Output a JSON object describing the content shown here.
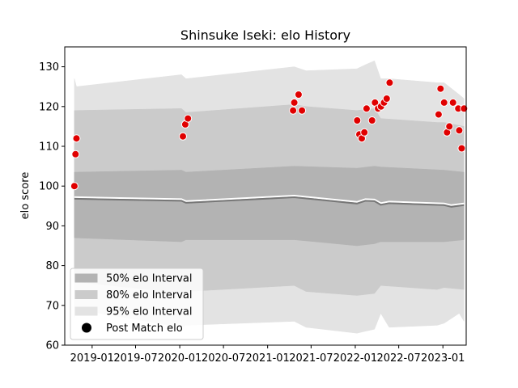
{
  "chart_data": {
    "type": "area",
    "title": "Shinsuke Iseki: elo History",
    "xlabel": "",
    "ylabel": "elo score",
    "ylim": [
      60,
      135
    ],
    "xlim": [
      "2018-09-09",
      "2023-04-08"
    ],
    "yticks": [
      "60",
      "70",
      "80",
      "90",
      "100",
      "110",
      "120",
      "130"
    ],
    "xticks": [
      {
        "date": "2019-01-01",
        "label": "2019-01"
      },
      {
        "date": "2019-07-01",
        "label": "2019-07"
      },
      {
        "date": "2020-01-01",
        "label": "2020-01"
      },
      {
        "date": "2020-07-01",
        "label": "2020-07"
      },
      {
        "date": "2021-01-01",
        "label": "2021-01"
      },
      {
        "date": "2021-07-01",
        "label": "2021-07"
      },
      {
        "date": "2022-01-01",
        "label": "2022-01"
      },
      {
        "date": "2022-07-01",
        "label": "2022-07"
      },
      {
        "date": "2023-01-01",
        "label": "2023-01"
      }
    ],
    "grid": false,
    "legend_position": "lower-left",
    "bands": [
      {
        "name": "95% elo Interval",
        "color": "#e3e3e3",
        "upper": [
          [
            "2018-10-19",
            127
          ],
          [
            "2018-10-28",
            125
          ],
          [
            "2020-01-08",
            128
          ],
          [
            "2020-01-27",
            127
          ],
          [
            "2021-04-22",
            130
          ],
          [
            "2021-06-10",
            129
          ],
          [
            "2022-01-08",
            129.5
          ],
          [
            "2022-02-12",
            130.5
          ],
          [
            "2022-03-22",
            131.5
          ],
          [
            "2022-04-17",
            127
          ],
          [
            "2022-05-22",
            127
          ],
          [
            "2022-12-08",
            126
          ],
          [
            "2023-01-06",
            126
          ],
          [
            "2023-03-10",
            123
          ],
          [
            "2023-03-30",
            122
          ]
        ],
        "lower": [
          [
            "2018-10-19",
            67
          ],
          [
            "2018-10-28",
            69
          ],
          [
            "2020-01-08",
            64.5
          ],
          [
            "2020-01-27",
            65
          ],
          [
            "2021-04-22",
            66
          ],
          [
            "2021-06-10",
            64.5
          ],
          [
            "2022-01-08",
            63
          ],
          [
            "2022-02-12",
            63.5
          ],
          [
            "2022-03-22",
            64
          ],
          [
            "2022-04-17",
            68
          ],
          [
            "2022-05-22",
            64.5
          ],
          [
            "2022-12-08",
            65
          ],
          [
            "2023-01-06",
            65.5
          ],
          [
            "2023-03-10",
            68
          ],
          [
            "2023-03-30",
            66
          ]
        ]
      },
      {
        "name": "80% elo Interval",
        "color": "#cbcbcb",
        "upper": [
          [
            "2018-10-19",
            119
          ],
          [
            "2020-01-08",
            119.5
          ],
          [
            "2020-01-27",
            118.5
          ],
          [
            "2021-04-22",
            120.5
          ],
          [
            "2021-06-10",
            120
          ],
          [
            "2022-01-08",
            119
          ],
          [
            "2022-03-22",
            119.5
          ],
          [
            "2022-04-17",
            117
          ],
          [
            "2022-12-08",
            116
          ],
          [
            "2023-01-06",
            116
          ],
          [
            "2023-03-30",
            115
          ]
        ],
        "lower": [
          [
            "2018-10-19",
            76
          ],
          [
            "2020-01-08",
            73
          ],
          [
            "2020-01-27",
            73.5
          ],
          [
            "2021-04-22",
            75
          ],
          [
            "2021-06-10",
            73.5
          ],
          [
            "2022-01-08",
            72.5
          ],
          [
            "2022-03-22",
            73
          ],
          [
            "2022-04-17",
            75
          ],
          [
            "2022-12-08",
            74
          ],
          [
            "2023-01-06",
            74.5
          ],
          [
            "2023-03-30",
            74
          ]
        ]
      },
      {
        "name": "50% elo Interval",
        "color": "#b3b3b3",
        "upper": [
          [
            "2018-10-19",
            103.5
          ],
          [
            "2020-01-08",
            104
          ],
          [
            "2020-01-27",
            103.5
          ],
          [
            "2021-04-22",
            105
          ],
          [
            "2022-01-08",
            104.5
          ],
          [
            "2022-03-22",
            105
          ],
          [
            "2022-04-17",
            104.8
          ],
          [
            "2023-01-06",
            104
          ],
          [
            "2023-03-30",
            103.5
          ]
        ],
        "lower": [
          [
            "2018-10-19",
            87
          ],
          [
            "2020-01-08",
            86
          ],
          [
            "2020-01-27",
            86.5
          ],
          [
            "2021-04-22",
            86.5
          ],
          [
            "2022-01-08",
            85
          ],
          [
            "2022-03-22",
            85.5
          ],
          [
            "2022-04-17",
            86
          ],
          [
            "2023-01-06",
            86
          ],
          [
            "2023-03-30",
            86.5
          ]
        ]
      }
    ],
    "center_line": [
      [
        "2018-10-19",
        96.8
      ],
      [
        "2020-01-08",
        96.3
      ],
      [
        "2020-01-27",
        95.8
      ],
      [
        "2021-04-22",
        97.2
      ],
      [
        "2022-01-08",
        95.6
      ],
      [
        "2022-02-12",
        96.3
      ],
      [
        "2022-03-22",
        96.2
      ],
      [
        "2022-04-17",
        95.3
      ],
      [
        "2022-05-22",
        95.7
      ],
      [
        "2023-01-06",
        95.2
      ],
      [
        "2023-02-05",
        94.8
      ],
      [
        "2023-03-30",
        95.2
      ]
    ],
    "points": {
      "name": "Post Match elo",
      "color": "#e00000",
      "values": [
        [
          "2018-10-19",
          100
        ],
        [
          "2018-10-24",
          108
        ],
        [
          "2018-10-28",
          112
        ],
        [
          "2020-01-14",
          112.5
        ],
        [
          "2020-01-24",
          115.5
        ],
        [
          "2020-02-04",
          117
        ],
        [
          "2021-04-17",
          119
        ],
        [
          "2021-04-22",
          121
        ],
        [
          "2021-05-10",
          123
        ],
        [
          "2021-05-24",
          119
        ],
        [
          "2022-01-09",
          116.5
        ],
        [
          "2022-01-18",
          113
        ],
        [
          "2022-01-28",
          112
        ],
        [
          "2022-02-08",
          113.5
        ],
        [
          "2022-02-17",
          119.5
        ],
        [
          "2022-03-12",
          116.5
        ],
        [
          "2022-03-24",
          121
        ],
        [
          "2022-04-06",
          119.5
        ],
        [
          "2022-04-18",
          120
        ],
        [
          "2022-05-01",
          121
        ],
        [
          "2022-05-12",
          122
        ],
        [
          "2022-05-24",
          126
        ],
        [
          "2022-12-14",
          118
        ],
        [
          "2022-12-22",
          124.5
        ],
        [
          "2023-01-06",
          121
        ],
        [
          "2023-01-18",
          113.5
        ],
        [
          "2023-01-28",
          115
        ],
        [
          "2023-02-12",
          121
        ],
        [
          "2023-03-06",
          119.5
        ],
        [
          "2023-03-10",
          114
        ],
        [
          "2023-03-20",
          109.5
        ],
        [
          "2023-03-30",
          119.5
        ]
      ]
    }
  }
}
